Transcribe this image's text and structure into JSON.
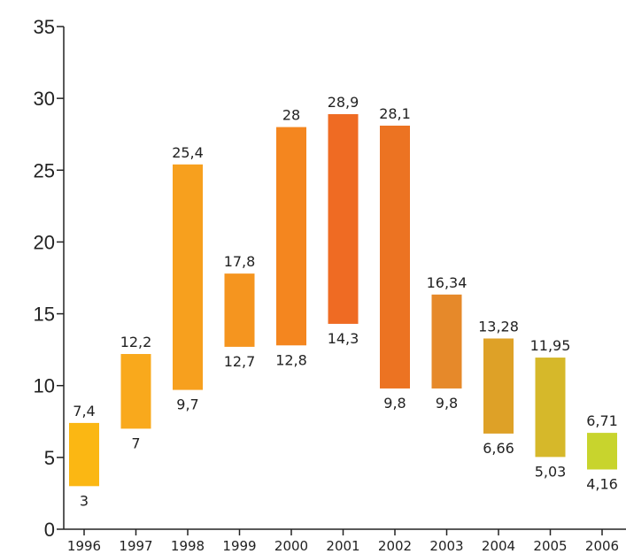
{
  "chart_data": {
    "type": "bar",
    "subtype": "floating-range",
    "title": "",
    "xlabel": "",
    "ylabel": "",
    "ylim": [
      0,
      35
    ],
    "yticks": [
      "0",
      "5",
      "10",
      "15",
      "20",
      "25",
      "30",
      "35"
    ],
    "grid": false,
    "categories": [
      "1996",
      "1997",
      "1998",
      "1999",
      "2000",
      "2001",
      "2002",
      "2003",
      "2004",
      "2005",
      "2006"
    ],
    "high": [
      7.4,
      12.2,
      25.4,
      17.8,
      28,
      28.9,
      28.1,
      16.34,
      13.28,
      11.95,
      6.71
    ],
    "low": [
      3,
      7,
      9.7,
      12.7,
      12.8,
      14.3,
      9.8,
      9.8,
      6.66,
      5.03,
      4.16
    ],
    "high_labels": [
      "7,4",
      "12,2",
      "25,4",
      "17,8",
      "28",
      "28,9",
      "28,1",
      "16,34",
      "13,28",
      "11,95",
      "6,71"
    ],
    "low_labels": [
      "3",
      "7",
      "9,7",
      "12,7",
      "12,8",
      "14,3",
      "9,8",
      "9,8",
      "6,66",
      "5,03",
      "4,16"
    ],
    "colors": [
      "#fbb713",
      "#f9a91c",
      "#f7a01e",
      "#f5951f",
      "#f4861f",
      "#ef6b23",
      "#ec7322",
      "#e6892a",
      "#dea127",
      "#d6b82a",
      "#c8d42d"
    ]
  }
}
